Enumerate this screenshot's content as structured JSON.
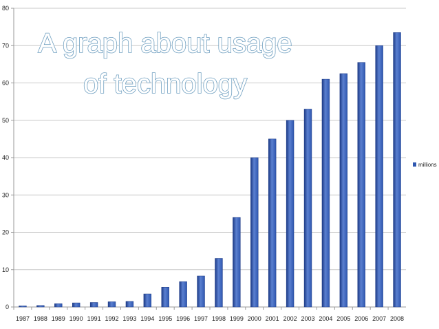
{
  "chart_data": {
    "type": "bar",
    "title_lines": [
      "A graph about usage",
      "of technology"
    ],
    "xlabel": "",
    "ylabel": "",
    "categories": [
      "1987",
      "1988",
      "1989",
      "1990",
      "1991",
      "1992",
      "1993",
      "1994",
      "1995",
      "1996",
      "1997",
      "1998",
      "1999",
      "2000",
      "2001",
      "2002",
      "2003",
      "2004",
      "2005",
      "2006",
      "2007",
      "2008"
    ],
    "series": [
      {
        "name": "millions",
        "values": [
          0.3,
          0.4,
          0.9,
          1.1,
          1.2,
          1.4,
          1.5,
          3.5,
          5.3,
          6.8,
          8.3,
          13,
          24,
          40,
          45,
          50,
          53,
          61,
          62.5,
          65.5,
          70,
          73.5
        ]
      }
    ],
    "ylim": [
      0,
      80
    ],
    "yticks": [
      "0",
      "10",
      "20",
      "30",
      "40",
      "50",
      "60",
      "70",
      "80"
    ],
    "grid": true,
    "legend_position": "right",
    "colors": {
      "bar": "#2f57b0",
      "bar_light": "#5b80d0",
      "bar_dark": "#1c3a86",
      "grid": "#c8c8c8",
      "axis": "#9a9a9a",
      "title_fill": "#ffffff",
      "title_stroke": "#6f9fc0"
    }
  }
}
